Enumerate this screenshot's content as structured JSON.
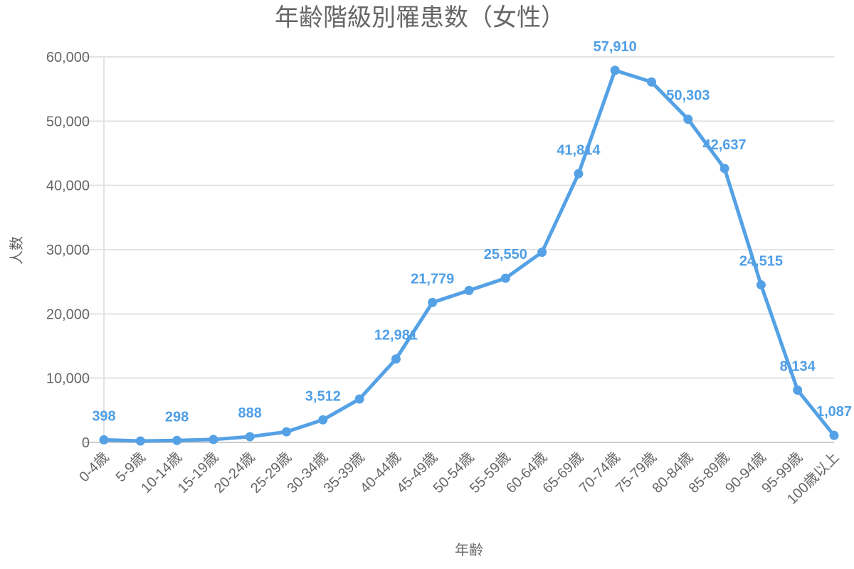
{
  "chart_data": {
    "type": "line",
    "title": "年齢階級別罹患数（女性）",
    "xlabel": "年齢",
    "ylabel": "人数",
    "ylim": [
      0,
      60000
    ],
    "yticks": [
      0,
      10000,
      20000,
      30000,
      40000,
      50000,
      60000
    ],
    "ytick_labels": [
      "0",
      "10,000",
      "20,000",
      "30,000",
      "40,000",
      "50,000",
      "60,000"
    ],
    "grid": true,
    "color": "#55a1e5",
    "categories": [
      "0-4歳",
      "5-9歳",
      "10-14歳",
      "15-19歳",
      "20-24歳",
      "25-29歳",
      "30-34歳",
      "35-39歳",
      "40-44歳",
      "45-49歳",
      "50-54歳",
      "55-59歳",
      "60-64歳",
      "65-69歳",
      "70-74歳",
      "75-79歳",
      "80-84歳",
      "85-89歳",
      "90-94歳",
      "95-99歳",
      "100歳以上"
    ],
    "values": [
      398,
      220,
      298,
      450,
      888,
      1650,
      3512,
      6750,
      12981,
      21779,
      23650,
      25550,
      29600,
      41814,
      57910,
      56100,
      50303,
      42637,
      24515,
      8134,
      1087
    ],
    "data_labels": [
      {
        "index": 0,
        "text": "398"
      },
      {
        "index": 2,
        "text": "298"
      },
      {
        "index": 4,
        "text": "888"
      },
      {
        "index": 6,
        "text": "3,512"
      },
      {
        "index": 8,
        "text": "12,981"
      },
      {
        "index": 9,
        "text": "21,779"
      },
      {
        "index": 11,
        "text": "25,550"
      },
      {
        "index": 13,
        "text": "41,814"
      },
      {
        "index": 14,
        "text": "57,910"
      },
      {
        "index": 16,
        "text": "50,303"
      },
      {
        "index": 17,
        "text": "42,637"
      },
      {
        "index": 18,
        "text": "24,515"
      },
      {
        "index": 19,
        "text": "8,134"
      },
      {
        "index": 20,
        "text": "1,087"
      }
    ]
  }
}
